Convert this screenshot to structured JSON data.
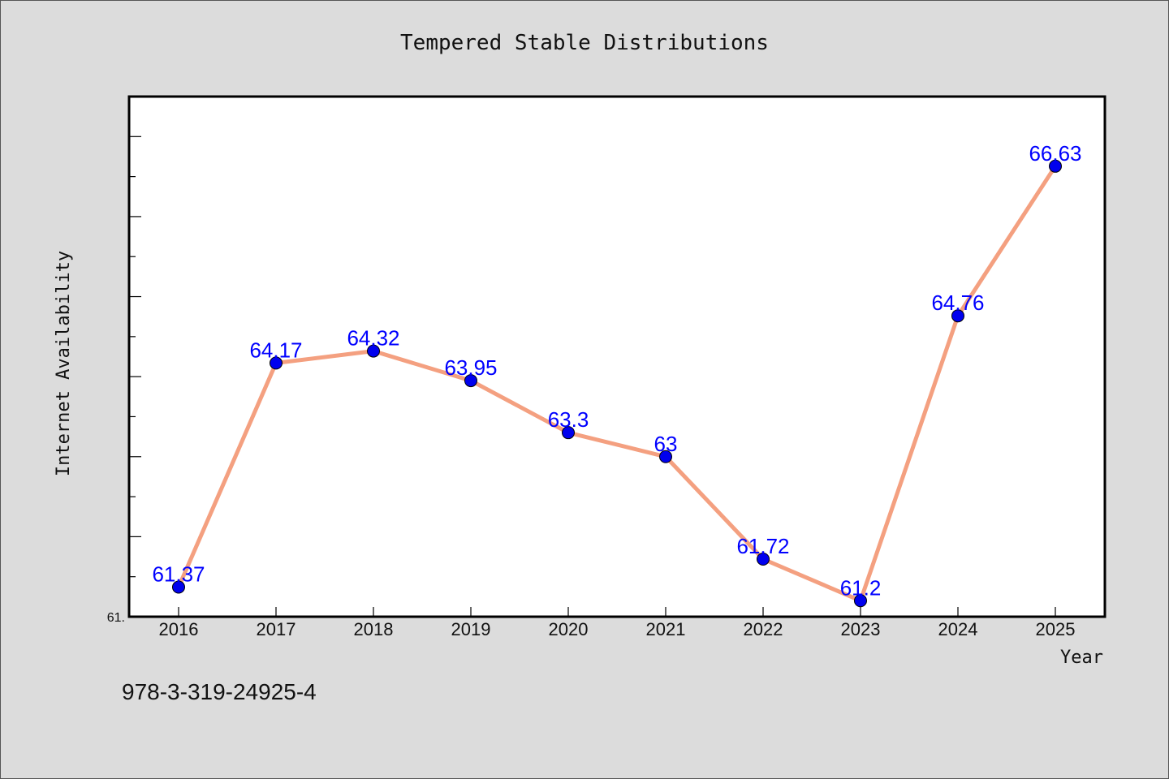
{
  "chart_data": {
    "type": "line",
    "title": "Tempered Stable Distributions",
    "xlabel": "Year",
    "ylabel": "Internet Availability",
    "categories": [
      "2016",
      "2017",
      "2018",
      "2019",
      "2020",
      "2021",
      "2022",
      "2023",
      "2024",
      "2025"
    ],
    "values": [
      61.37,
      64.17,
      64.32,
      63.95,
      63.3,
      63,
      61.72,
      61.2,
      64.76,
      66.63
    ],
    "data_labels": [
      "61.37",
      "64.17",
      "64.32",
      "63.95",
      "63.3",
      "63",
      "61.72",
      "61.2",
      "64.76",
      "66.63"
    ],
    "ylim": [
      61,
      67.5
    ],
    "y_tick_label": "61.",
    "line_color": "#f4a080",
    "marker_color": "#0000ee",
    "label_color": "#0000ff",
    "grid": false,
    "legend": "none"
  },
  "footer_note": "978-3-319-24925-4"
}
